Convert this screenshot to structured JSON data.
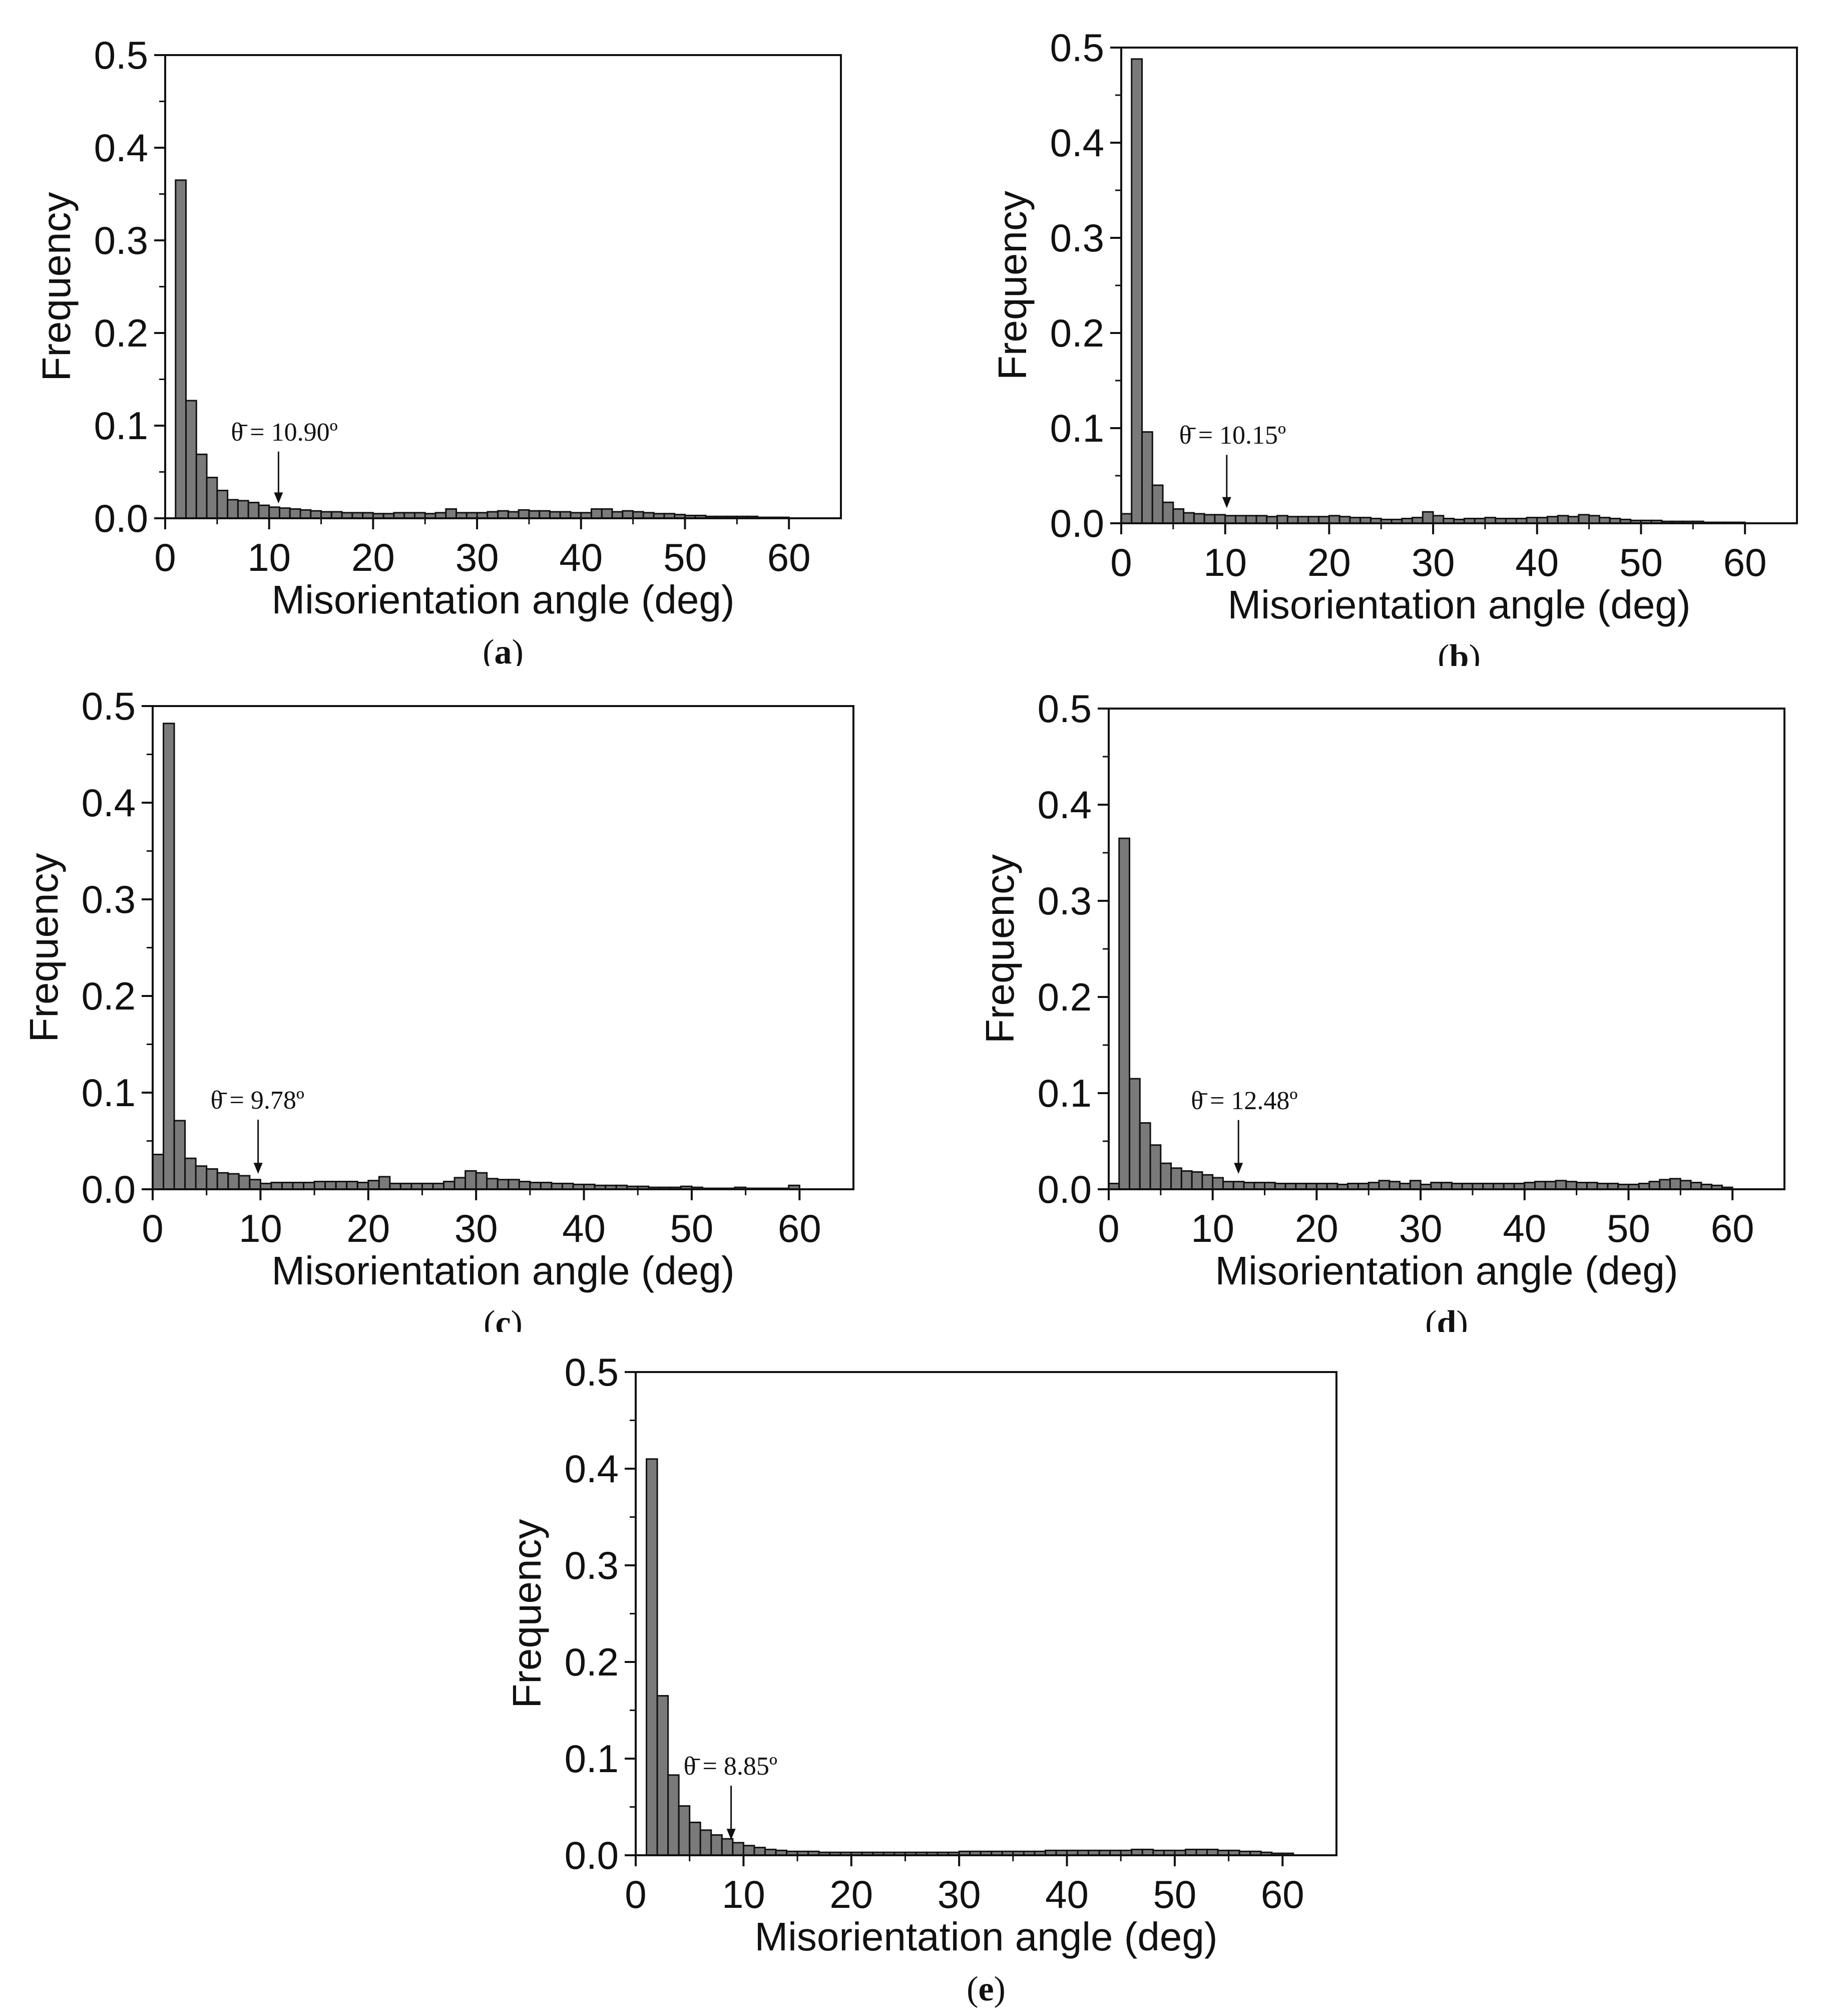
{
  "chart_data": [
    {
      "id": "a",
      "type": "bar",
      "caption_letter": "a",
      "xlabel": "Misorientation angle (deg)",
      "ylabel": "Frequency",
      "xlim": [
        0,
        65
      ],
      "ylim": [
        0,
        0.5
      ],
      "xticks": [
        "0",
        "10",
        "20",
        "30",
        "40",
        "50",
        "60"
      ],
      "yticks": [
        "0.0",
        "0.1",
        "0.2",
        "0.3",
        "0.4",
        "0.5"
      ],
      "bin_width": 1,
      "x_start": 1,
      "values": [
        0.365,
        0.127,
        0.069,
        0.044,
        0.03,
        0.02,
        0.019,
        0.017,
        0.014,
        0.012,
        0.011,
        0.01,
        0.009,
        0.008,
        0.007,
        0.007,
        0.006,
        0.006,
        0.006,
        0.005,
        0.005,
        0.006,
        0.006,
        0.006,
        0.005,
        0.006,
        0.01,
        0.006,
        0.006,
        0.006,
        0.007,
        0.008,
        0.007,
        0.009,
        0.008,
        0.008,
        0.007,
        0.007,
        0.006,
        0.006,
        0.01,
        0.01,
        0.007,
        0.008,
        0.007,
        0.006,
        0.005,
        0.005,
        0.004,
        0.003,
        0.003,
        0.002,
        0.002,
        0.002,
        0.002,
        0.002,
        0.001,
        0.001,
        0.001
      ],
      "mean_label": "θ̄ = 10.90º",
      "mean_value": 10.9
    },
    {
      "id": "b",
      "type": "bar",
      "caption_letter": "b",
      "xlabel": "Misorientation angle (deg)",
      "ylabel": "Frequency",
      "xlim": [
        0,
        65
      ],
      "ylim": [
        0,
        0.5
      ],
      "xticks": [
        "0",
        "10",
        "20",
        "30",
        "40",
        "50",
        "60"
      ],
      "yticks": [
        "0.0",
        "0.1",
        "0.2",
        "0.3",
        "0.4",
        "0.5"
      ],
      "bin_width": 1,
      "x_start": 0,
      "values": [
        0.01,
        0.488,
        0.096,
        0.04,
        0.022,
        0.015,
        0.011,
        0.01,
        0.009,
        0.009,
        0.008,
        0.008,
        0.008,
        0.008,
        0.007,
        0.008,
        0.007,
        0.007,
        0.007,
        0.007,
        0.008,
        0.007,
        0.006,
        0.006,
        0.005,
        0.004,
        0.004,
        0.005,
        0.006,
        0.012,
        0.008,
        0.005,
        0.004,
        0.005,
        0.005,
        0.006,
        0.005,
        0.005,
        0.005,
        0.006,
        0.006,
        0.007,
        0.008,
        0.007,
        0.009,
        0.008,
        0.006,
        0.005,
        0.004,
        0.003,
        0.003,
        0.003,
        0.002,
        0.002,
        0.002,
        0.002,
        0.001,
        0.001,
        0.001,
        0.001
      ],
      "mean_label": "θ̄ = 10.15º",
      "mean_value": 10.15
    },
    {
      "id": "c",
      "type": "bar",
      "caption_letter": "c",
      "xlabel": "Misorientation angle (deg)",
      "ylabel": "Frequency",
      "xlim": [
        0,
        65
      ],
      "ylim": [
        0,
        0.5
      ],
      "xticks": [
        "0",
        "10",
        "20",
        "30",
        "40",
        "50",
        "60"
      ],
      "yticks": [
        "0.0",
        "0.1",
        "0.2",
        "0.3",
        "0.4",
        "0.5"
      ],
      "bin_width": 1,
      "x_start": 0,
      "values": [
        0.036,
        0.482,
        0.071,
        0.032,
        0.024,
        0.021,
        0.017,
        0.016,
        0.014,
        0.01,
        0.006,
        0.007,
        0.007,
        0.007,
        0.007,
        0.008,
        0.008,
        0.008,
        0.008,
        0.007,
        0.009,
        0.013,
        0.006,
        0.006,
        0.006,
        0.006,
        0.006,
        0.008,
        0.012,
        0.019,
        0.017,
        0.011,
        0.01,
        0.01,
        0.008,
        0.007,
        0.007,
        0.006,
        0.006,
        0.005,
        0.005,
        0.004,
        0.004,
        0.004,
        0.003,
        0.003,
        0.002,
        0.002,
        0.002,
        0.003,
        0.002,
        0.001,
        0.001,
        0.001,
        0.002,
        0.001,
        0.001,
        0.001,
        0.001,
        0.004
      ],
      "mean_label": "θ̄ = 9.78º",
      "mean_value": 9.78
    },
    {
      "id": "d",
      "type": "bar",
      "caption_letter": "d",
      "xlabel": "Misorientation angle (deg)",
      "ylabel": "Frequency",
      "xlim": [
        0,
        65
      ],
      "ylim": [
        0,
        0.5
      ],
      "xticks": [
        "0",
        "10",
        "20",
        "30",
        "40",
        "50",
        "60"
      ],
      "yticks": [
        "0.0",
        "0.1",
        "0.2",
        "0.3",
        "0.4",
        "0.5"
      ],
      "bin_width": 1,
      "x_start": 0,
      "values": [
        0.006,
        0.365,
        0.115,
        0.069,
        0.046,
        0.027,
        0.022,
        0.019,
        0.018,
        0.015,
        0.012,
        0.008,
        0.008,
        0.007,
        0.007,
        0.007,
        0.006,
        0.006,
        0.006,
        0.006,
        0.006,
        0.006,
        0.005,
        0.006,
        0.006,
        0.007,
        0.009,
        0.008,
        0.006,
        0.009,
        0.005,
        0.007,
        0.007,
        0.006,
        0.006,
        0.006,
        0.006,
        0.006,
        0.006,
        0.006,
        0.007,
        0.008,
        0.008,
        0.009,
        0.008,
        0.007,
        0.007,
        0.006,
        0.006,
        0.005,
        0.005,
        0.006,
        0.008,
        0.01,
        0.011,
        0.009,
        0.007,
        0.005,
        0.004,
        0.002
      ],
      "mean_label": "θ̄ = 12.48º",
      "mean_value": 12.48
    },
    {
      "id": "e",
      "type": "bar",
      "caption_letter": "e",
      "xlabel": "Misorientation angle (deg)",
      "ylabel": "Frequency",
      "xlim": [
        0,
        65
      ],
      "ylim": [
        0,
        0.5
      ],
      "xticks": [
        "0",
        "10",
        "20",
        "30",
        "40",
        "50",
        "60"
      ],
      "yticks": [
        "0.0",
        "0.1",
        "0.2",
        "0.3",
        "0.4",
        "0.5"
      ],
      "bin_width": 1,
      "x_start": 1,
      "values": [
        0.41,
        0.165,
        0.083,
        0.051,
        0.034,
        0.026,
        0.021,
        0.017,
        0.013,
        0.01,
        0.008,
        0.006,
        0.005,
        0.004,
        0.004,
        0.004,
        0.003,
        0.003,
        0.003,
        0.003,
        0.003,
        0.003,
        0.003,
        0.003,
        0.003,
        0.003,
        0.003,
        0.003,
        0.003,
        0.004,
        0.004,
        0.004,
        0.004,
        0.004,
        0.004,
        0.004,
        0.004,
        0.005,
        0.005,
        0.005,
        0.005,
        0.005,
        0.005,
        0.005,
        0.005,
        0.006,
        0.006,
        0.005,
        0.005,
        0.005,
        0.006,
        0.006,
        0.006,
        0.005,
        0.005,
        0.004,
        0.004,
        0.003,
        0.002,
        0.002
      ],
      "mean_label": "θ̄ = 8.85º",
      "mean_value": 8.85
    }
  ]
}
